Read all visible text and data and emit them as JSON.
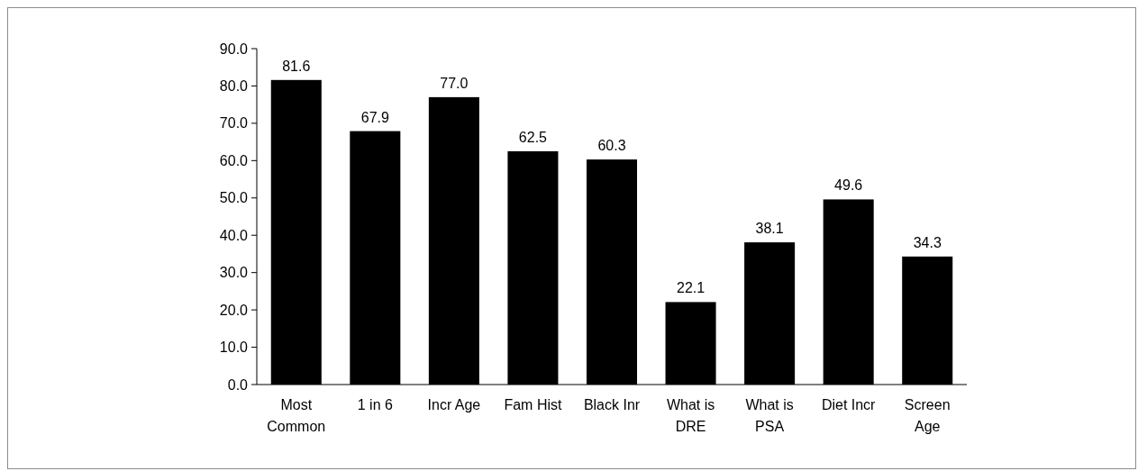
{
  "chart_data": {
    "type": "bar",
    "categories": [
      "Most Common",
      "1 in 6",
      "Incr Age",
      "Fam Hist",
      "Black Inr",
      "What is DRE",
      "What is PSA",
      "Diet Incr",
      "Screen Age"
    ],
    "values": [
      81.6,
      67.9,
      77.0,
      62.5,
      60.3,
      22.1,
      38.1,
      49.6,
      34.3
    ],
    "value_labels": [
      "81.6",
      "67.9",
      "77.0",
      "62.5",
      "60.3",
      "22.1",
      "38.1",
      "49.6",
      "34.3"
    ],
    "color": "#000000",
    "ylim": [
      0,
      90
    ],
    "yticks": [
      {
        "value": 0,
        "label": "0.0"
      },
      {
        "value": 10,
        "label": "10.0"
      },
      {
        "value": 20,
        "label": "20.0"
      },
      {
        "value": 30,
        "label": "30.0"
      },
      {
        "value": 40,
        "label": "40.0"
      },
      {
        "value": 50,
        "label": "50.0"
      },
      {
        "value": 60,
        "label": "60.0"
      },
      {
        "value": 70,
        "label": "70.0"
      },
      {
        "value": 80,
        "label": "80.0"
      },
      {
        "value": 90,
        "label": "90.0"
      }
    ],
    "grid": false
  }
}
